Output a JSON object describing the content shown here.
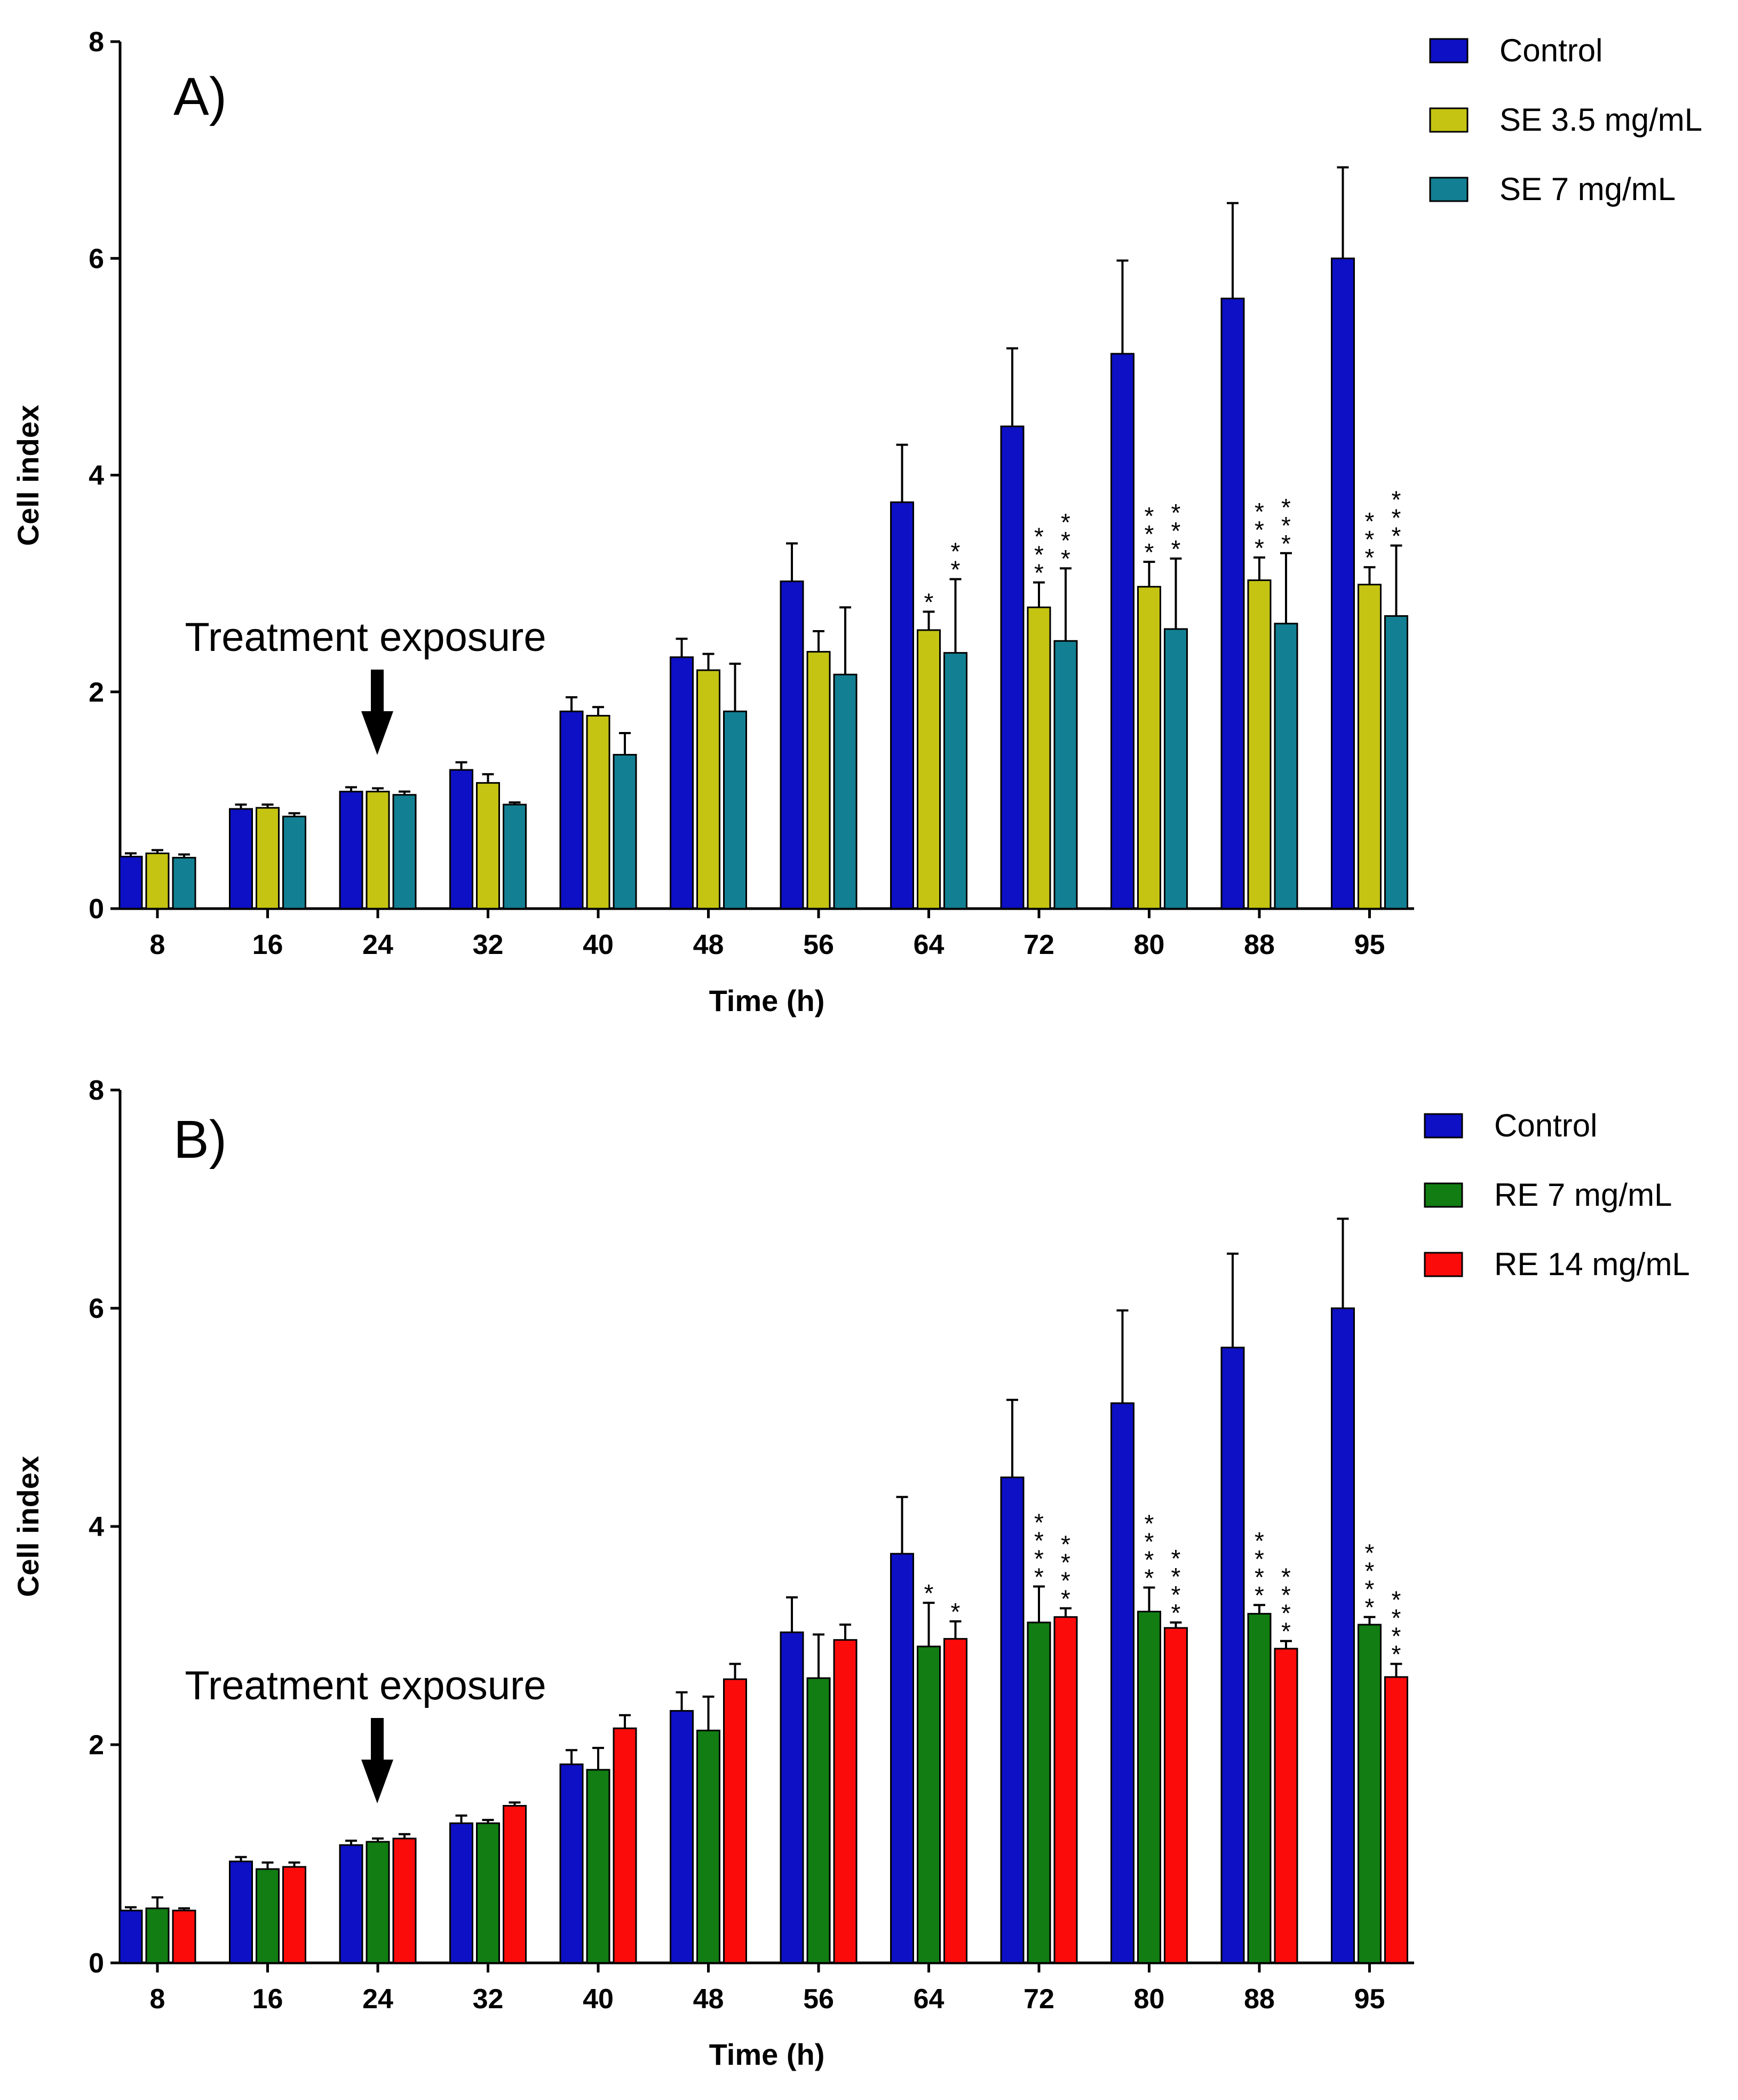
{
  "chart_data": [
    {
      "type": "bar",
      "panel_label": "A)",
      "title": "",
      "xlabel": "Time (h)",
      "ylabel": "Cell index",
      "ylim": [
        0,
        8
      ],
      "yticks": [
        "0",
        "2",
        "4",
        "6",
        "8"
      ],
      "categories": [
        "8",
        "16",
        "24",
        "32",
        "40",
        "48",
        "56",
        "64",
        "72",
        "80",
        "88",
        "95"
      ],
      "annotation": "Treatment exposure",
      "legend_position": "top-right",
      "series": [
        {
          "name": "Control",
          "color": "#0d10c4",
          "values": [
            0.48,
            0.92,
            1.08,
            1.28,
            1.82,
            2.32,
            3.02,
            3.75,
            4.45,
            5.12,
            5.63,
            6.0
          ],
          "errors": [
            0.03,
            0.04,
            0.04,
            0.07,
            0.13,
            0.17,
            0.35,
            0.53,
            0.72,
            0.86,
            0.88,
            0.84
          ],
          "significance": [
            "",
            "",
            "",
            "",
            "",
            "",
            "",
            "",
            "",
            "",
            "",
            ""
          ]
        },
        {
          "name": "SE 3.5 mg/mL",
          "color": "#c5c412",
          "values": [
            0.51,
            0.93,
            1.08,
            1.16,
            1.78,
            2.2,
            2.37,
            2.57,
            2.78,
            2.97,
            3.03,
            2.99
          ],
          "errors": [
            0.03,
            0.03,
            0.03,
            0.08,
            0.08,
            0.15,
            0.19,
            0.17,
            0.23,
            0.23,
            0.21,
            0.16
          ],
          "significance": [
            "",
            "",
            "",
            "",
            "",
            "",
            "",
            "*",
            "***",
            "***",
            "***",
            "***"
          ]
        },
        {
          "name": "SE 7 mg/mL",
          "color": "#137f92",
          "values": [
            0.47,
            0.85,
            1.05,
            0.96,
            1.42,
            1.82,
            2.16,
            2.36,
            2.47,
            2.58,
            2.63,
            2.7
          ],
          "errors": [
            0.03,
            0.03,
            0.03,
            0.02,
            0.2,
            0.44,
            0.62,
            0.68,
            0.67,
            0.65,
            0.65,
            0.65
          ],
          "significance": [
            "",
            "",
            "",
            "",
            "",
            "",
            "",
            "**",
            "***",
            "***",
            "***",
            "***"
          ]
        }
      ]
    },
    {
      "type": "bar",
      "panel_label": "B)",
      "title": "",
      "xlabel": "Time (h)",
      "ylabel": "Cell index",
      "ylim": [
        0,
        8
      ],
      "yticks": [
        "0",
        "2",
        "4",
        "6",
        "8"
      ],
      "categories": [
        "8",
        "16",
        "24",
        "32",
        "40",
        "48",
        "56",
        "64",
        "72",
        "80",
        "88",
        "95"
      ],
      "annotation": "Treatment exposure",
      "legend_position": "top-right",
      "series": [
        {
          "name": "Control",
          "color": "#0d10c4",
          "values": [
            0.48,
            0.93,
            1.08,
            1.28,
            1.82,
            2.31,
            3.03,
            3.75,
            4.45,
            5.13,
            5.64,
            6.0
          ],
          "errors": [
            0.03,
            0.04,
            0.04,
            0.07,
            0.13,
            0.17,
            0.32,
            0.52,
            0.71,
            0.85,
            0.86,
            0.82
          ],
          "significance": [
            "",
            "",
            "",
            "",
            "",
            "",
            "",
            "",
            "",
            "",
            "",
            ""
          ]
        },
        {
          "name": "RE 7 mg/mL",
          "color": "#117d12",
          "values": [
            0.5,
            0.86,
            1.11,
            1.28,
            1.77,
            2.13,
            2.61,
            2.9,
            3.12,
            3.22,
            3.2,
            3.1
          ],
          "errors": [
            0.1,
            0.06,
            0.03,
            0.03,
            0.2,
            0.31,
            0.4,
            0.4,
            0.33,
            0.22,
            0.08,
            0.07
          ],
          "significance": [
            "",
            "",
            "",
            "",
            "",
            "",
            "",
            "*",
            "****",
            "****",
            "****",
            "****"
          ]
        },
        {
          "name": "RE 14 mg/mL",
          "color": "#fc0b0b",
          "values": [
            0.48,
            0.88,
            1.14,
            1.44,
            2.15,
            2.6,
            2.96,
            2.97,
            3.17,
            3.07,
            2.88,
            2.62
          ],
          "errors": [
            0.02,
            0.04,
            0.04,
            0.03,
            0.12,
            0.14,
            0.14,
            0.16,
            0.08,
            0.05,
            0.07,
            0.12
          ],
          "significance": [
            "",
            "",
            "",
            "",
            "",
            "",
            "",
            "*",
            "****",
            "****",
            "****",
            "****"
          ]
        }
      ]
    }
  ]
}
